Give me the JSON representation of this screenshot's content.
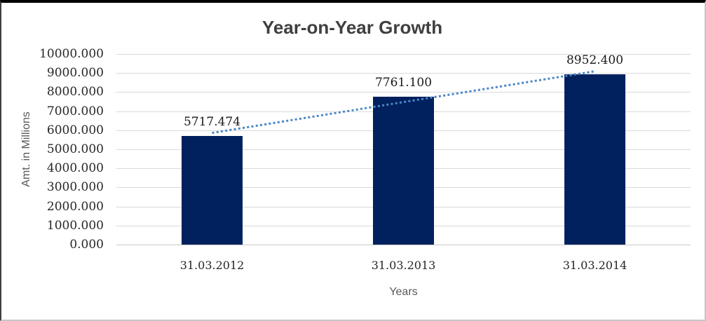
{
  "chart_data": {
    "type": "bar",
    "title": "Year-on-Year Growth",
    "xlabel": "Years",
    "ylabel": "Amt. in Millions",
    "categories": [
      "31.03.2012",
      "31.03.2013",
      "31.03.2014"
    ],
    "values": [
      5717.474,
      7761.1,
      8952.4
    ],
    "data_labels": [
      "5717.474",
      "7761.100",
      "8952.400"
    ],
    "ylim": [
      0,
      10000
    ],
    "ytick_step": 1000,
    "ytick_labels": [
      "0.000",
      "1000.000",
      "2000.000",
      "3000.000",
      "4000.000",
      "5000.000",
      "6000.000",
      "7000.000",
      "8000.000",
      "9000.000",
      "10000.000"
    ],
    "grid": "horizontal",
    "legend": "none",
    "trendline": {
      "type": "linear",
      "stroke_style": "dotted",
      "color": "#4a86c8"
    },
    "colors": {
      "bar": "#00215e",
      "gridline": "#d9d9d9",
      "axisline": "#c9c9c9",
      "title_text": "#3f3f3f",
      "tick_text": "#262626",
      "data_label_text": "#1a1a1a",
      "axis_title_text": "#595959",
      "frame_top": "#000000",
      "frame_left": "#3f3f3f",
      "frame_side": "#c6c6c6"
    }
  }
}
